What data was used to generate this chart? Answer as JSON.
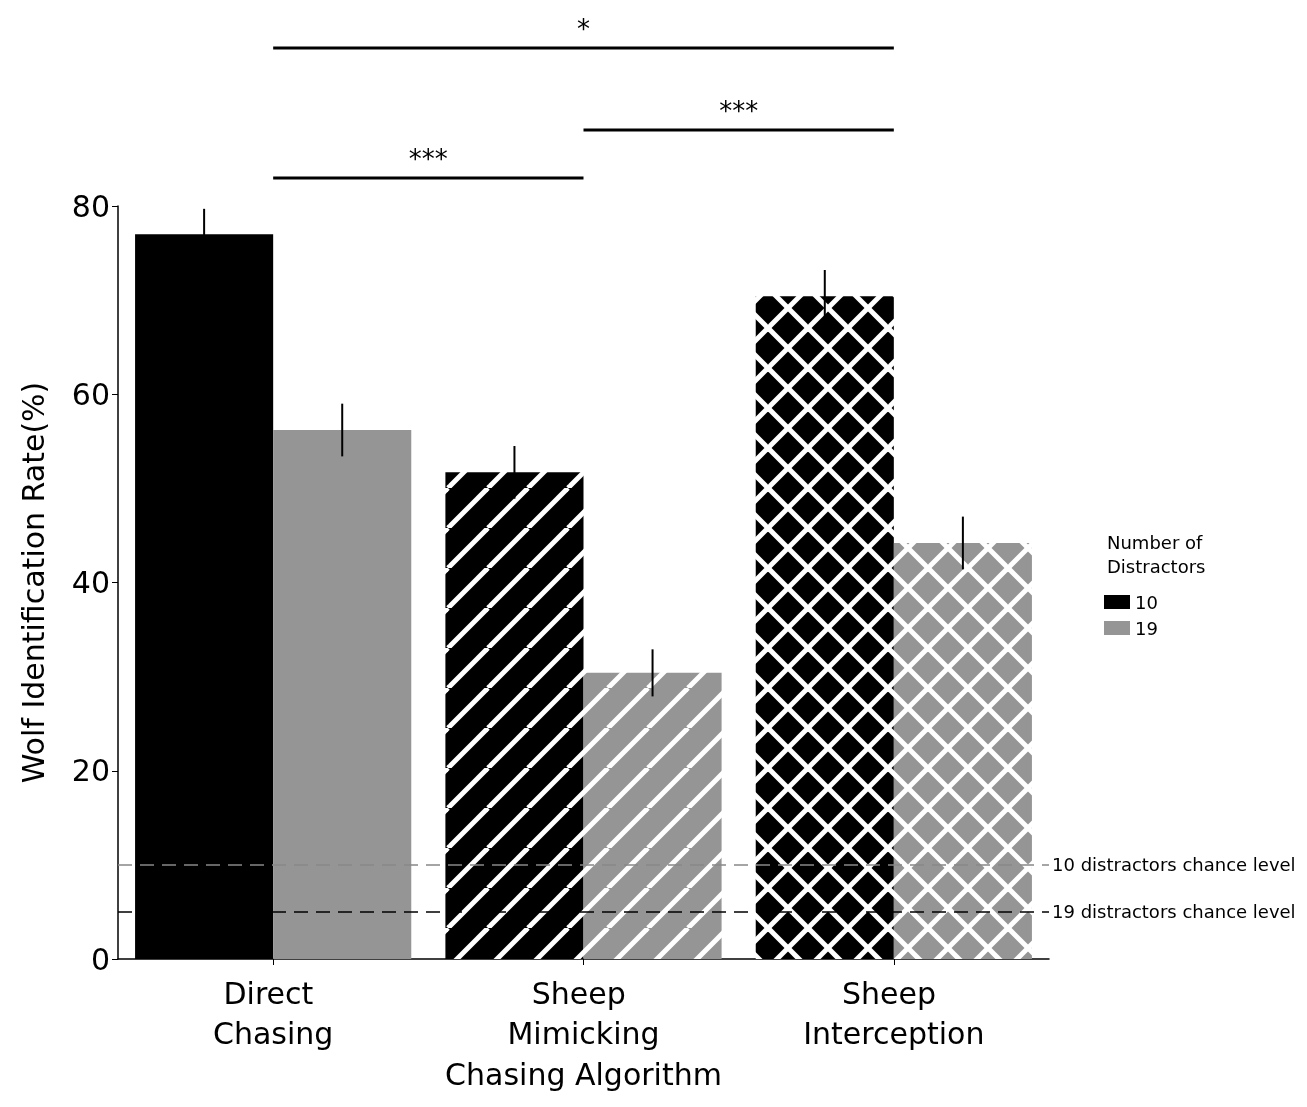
{
  "chart_data": {
    "type": "bar",
    "categories": [
      "Direct Chasing",
      "Sheep Mimicking",
      "Sheep Interception"
    ],
    "series": [
      {
        "name": "10",
        "color": "#000000",
        "values": [
          77.0,
          51.7,
          70.4
        ],
        "errors": [
          2.7,
          2.8,
          2.8
        ]
      },
      {
        "name": "19",
        "color": "#959595",
        "values": [
          56.2,
          30.4,
          44.2
        ],
        "errors": [
          2.8,
          2.5,
          2.8
        ]
      }
    ],
    "xlabel": "Chasing Algorithm",
    "ylabel": "Wolf Identification Rate(%)",
    "legend_title": "Number of Distractors",
    "ylim": [
      0,
      80
    ],
    "yticks": [
      0,
      20,
      40,
      60,
      80
    ],
    "ref_lines": [
      {
        "axis": "y",
        "value": 10,
        "label": "10 distractors chance level",
        "color": "#888888",
        "line_style": "dashed"
      },
      {
        "axis": "y",
        "value": 5,
        "label": "19 distractors chance level",
        "color": "#000000",
        "line_style": "dashed"
      }
    ],
    "annotations": [
      "*",
      "***",
      "***"
    ],
    "grid": false,
    "legend": "right"
  }
}
